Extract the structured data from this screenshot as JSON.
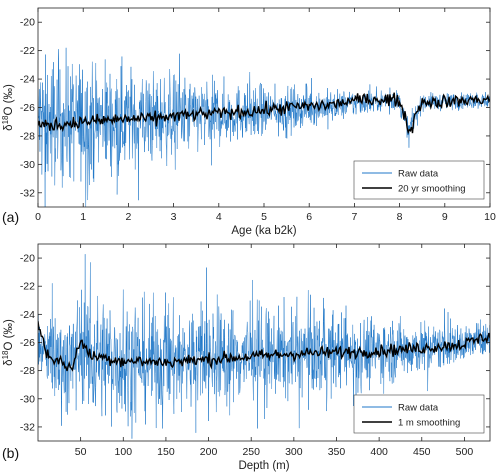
{
  "chart_data": [
    {
      "type": "line",
      "panel_label": "(a)",
      "xlabel": "Age (ka b2k)",
      "ylabel": "δ18O (‰)",
      "xlim": [
        0,
        10
      ],
      "ylim": [
        -33,
        -19
      ],
      "x_ticks": [
        0,
        1,
        2,
        3,
        4,
        5,
        6,
        7,
        8,
        9,
        10
      ],
      "y_ticks": [
        -32,
        -30,
        -28,
        -26,
        -24,
        -22,
        -20
      ],
      "y_reversed": false,
      "grid": false,
      "legend_position": "lower-right",
      "series": [
        {
          "name": "Raw data",
          "color": "#1f77c8",
          "style": "raw",
          "x": [
            0,
            0.5,
            1,
            1.5,
            2,
            2.5,
            3,
            3.5,
            4,
            4.5,
            5,
            5.5,
            6,
            6.5,
            7,
            7.5,
            8,
            8.2,
            8.5,
            9,
            9.5,
            10
          ],
          "center": [
            -27.0,
            -27.0,
            -26.9,
            -26.9,
            -26.8,
            -26.8,
            -26.7,
            -26.6,
            -26.5,
            -26.4,
            -26.3,
            -26.2,
            -26.0,
            -25.9,
            -25.7,
            -25.5,
            -25.5,
            -27.6,
            -25.6,
            -25.6,
            -25.5,
            -25.5
          ],
          "spread": [
            5.5,
            5.2,
            4.8,
            4.5,
            4.2,
            3.8,
            3.4,
            3.0,
            2.6,
            2.3,
            2.0,
            1.8,
            1.5,
            1.3,
            1.1,
            0.9,
            0.8,
            0.9,
            0.7,
            0.7,
            0.7,
            0.7
          ]
        },
        {
          "name": "20 yr smoothing",
          "color": "#000000",
          "style": "smooth",
          "x": [
            0,
            0.5,
            1,
            1.5,
            2,
            2.5,
            3,
            3.5,
            4,
            4.5,
            5,
            5.5,
            6,
            6.5,
            7,
            7.5,
            8,
            8.15,
            8.25,
            8.35,
            8.5,
            9,
            9.5,
            10
          ],
          "y": [
            -27.3,
            -27.2,
            -27.0,
            -26.9,
            -26.8,
            -26.8,
            -26.6,
            -26.5,
            -26.4,
            -26.3,
            -26.2,
            -26.0,
            -25.9,
            -25.8,
            -25.5,
            -25.4,
            -25.5,
            -27.0,
            -27.8,
            -26.4,
            -25.6,
            -25.6,
            -25.5,
            -25.4
          ]
        }
      ]
    },
    {
      "type": "line",
      "panel_label": "(b)",
      "xlabel": "Depth (m)",
      "ylabel": "δ18O (‰)",
      "xlim": [
        0,
        530
      ],
      "ylim": [
        -33,
        -19
      ],
      "x_ticks": [
        50,
        100,
        150,
        200,
        250,
        300,
        350,
        400,
        450,
        500
      ],
      "y_ticks": [
        -32,
        -30,
        -28,
        -26,
        -24,
        -22,
        -20
      ],
      "grid": false,
      "legend_position": "lower-right",
      "series": [
        {
          "name": "Raw data",
          "color": "#1f77c8",
          "style": "raw",
          "x": [
            0,
            20,
            40,
            50,
            60,
            100,
            150,
            200,
            250,
            300,
            350,
            400,
            450,
            500,
            530
          ],
          "center": [
            -26.5,
            -27.2,
            -27.5,
            -26.0,
            -27.0,
            -27.3,
            -27.3,
            -27.1,
            -27.0,
            -26.8,
            -26.7,
            -26.6,
            -26.4,
            -26.1,
            -25.6
          ],
          "spread": [
            2.6,
            3.8,
            4.8,
            4.5,
            5.2,
            5.0,
            4.6,
            4.4,
            3.9,
            3.6,
            3.2,
            2.8,
            2.2,
            1.6,
            1.2
          ]
        },
        {
          "name": "1 m smoothing",
          "color": "#000000",
          "style": "smooth",
          "x": [
            0,
            10,
            20,
            30,
            40,
            50,
            60,
            100,
            150,
            200,
            250,
            300,
            350,
            400,
            450,
            500,
            530
          ],
          "y": [
            -24.5,
            -26.8,
            -27.2,
            -27.5,
            -27.9,
            -25.7,
            -26.9,
            -27.3,
            -27.4,
            -27.2,
            -27.0,
            -26.8,
            -26.7,
            -26.6,
            -26.4,
            -26.1,
            -25.5
          ]
        }
      ]
    }
  ]
}
